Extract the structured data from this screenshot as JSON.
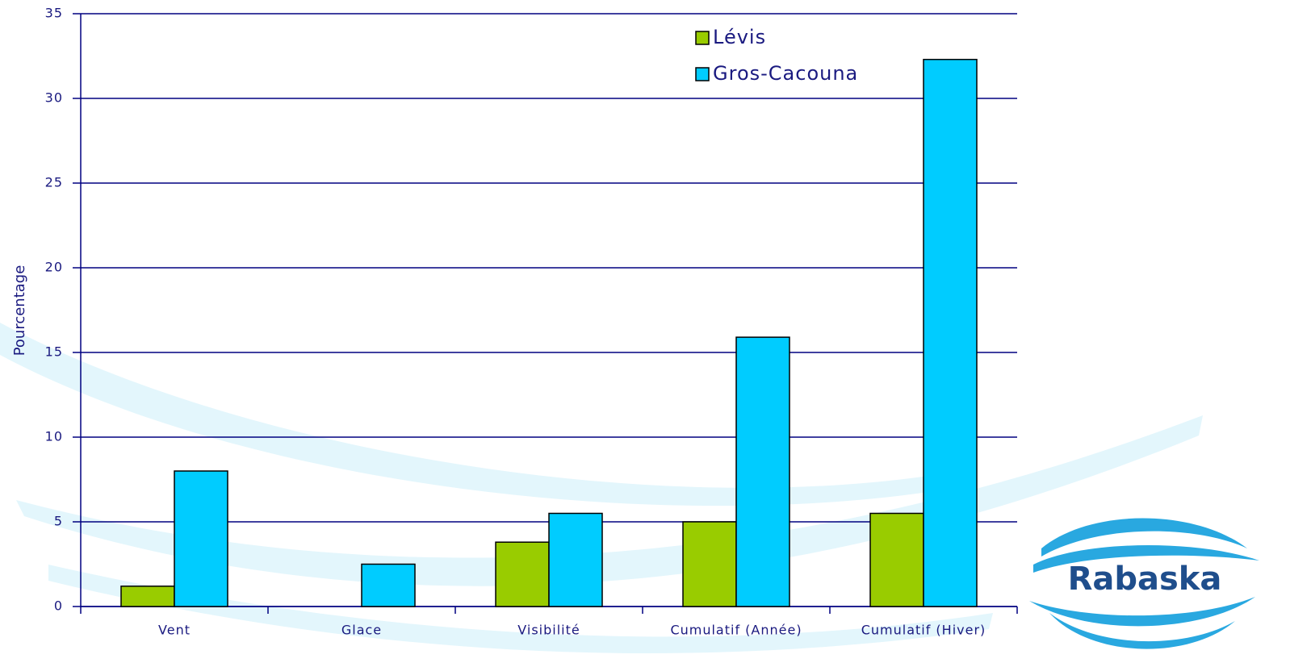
{
  "chart_data": {
    "type": "bar",
    "y_label": "Pourcentage",
    "categories": [
      "Vent",
      "Glace",
      "Visibilité",
      "Cumulatif (Année)",
      "Cumulatif (Hiver)"
    ],
    "series": [
      {
        "name": "Lévis",
        "color": "#99cc00",
        "values": [
          1.2,
          0,
          3.8,
          5.0,
          5.5
        ]
      },
      {
        "name": "Gros-Cacouna",
        "color": "#00ccff",
        "values": [
          8.0,
          2.5,
          5.5,
          15.9,
          32.3
        ]
      }
    ],
    "ylim": [
      0,
      35
    ],
    "yticks": [
      0,
      5,
      10,
      15,
      20,
      25,
      30,
      35
    ],
    "grid": true
  },
  "logo_text": "Rabaska"
}
